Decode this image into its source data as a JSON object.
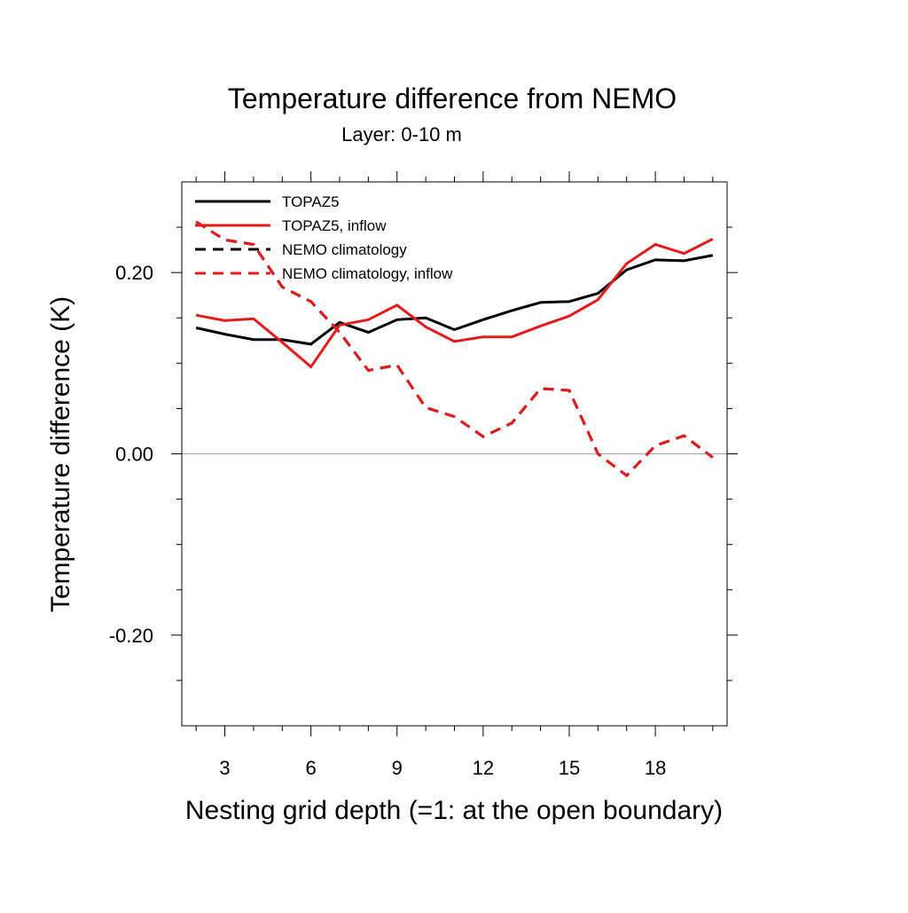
{
  "chart_data": {
    "type": "line",
    "title": "Temperature difference from NEMO",
    "subtitle": "Layer: 0-10 m",
    "xlabel": "Nesting grid depth (=1: at the open boundary)",
    "ylabel": "Temperature difference (K)",
    "x": [
      2,
      3,
      4,
      5,
      6,
      7,
      8,
      9,
      10,
      11,
      12,
      13,
      14,
      15,
      16,
      17,
      18,
      19,
      20
    ],
    "series": [
      {
        "name": "TOPAZ5",
        "color": "#000000",
        "linestyle": "solid",
        "values": [
          0.139,
          0.132,
          0.126,
          0.126,
          0.121,
          0.145,
          0.134,
          0.148,
          0.15,
          0.137,
          0.148,
          0.158,
          0.167,
          0.168,
          0.177,
          0.203,
          0.214,
          0.213,
          0.219
        ]
      },
      {
        "name": "TOPAZ5, inflow",
        "color": "#e41a1c",
        "linestyle": "solid",
        "values": [
          0.153,
          0.147,
          0.149,
          0.123,
          0.096,
          0.142,
          0.148,
          0.164,
          0.14,
          0.124,
          0.129,
          0.129,
          0.141,
          0.152,
          0.17,
          0.21,
          0.231,
          0.221,
          0.237
        ]
      },
      {
        "name": "NEMO climatology",
        "color": "#000000",
        "linestyle": "dashed",
        "values": [
          0.256,
          0.236,
          0.231,
          0.184,
          0.168,
          0.134,
          0.092,
          0.098,
          0.051,
          0.041,
          0.019,
          0.034,
          0.072,
          0.07,
          0.0,
          -0.024,
          0.009,
          0.02,
          -0.004
        ]
      },
      {
        "name": "NEMO climatology, inflow",
        "color": "#e41a1c",
        "linestyle": "dashed",
        "values": [
          0.256,
          0.236,
          0.231,
          0.184,
          0.168,
          0.134,
          0.092,
          0.098,
          0.051,
          0.041,
          0.019,
          0.034,
          0.072,
          0.07,
          0.0,
          -0.024,
          0.009,
          0.02,
          -0.004
        ]
      }
    ],
    "xlim": [
      1.5,
      20.5
    ],
    "ylim": [
      -0.3,
      0.3
    ],
    "xticks": [
      3,
      6,
      9,
      12,
      15,
      18
    ],
    "yticks": [
      {
        "value": -0.2,
        "label": "-0.20"
      },
      {
        "value": 0,
        "label": "0.00"
      },
      {
        "value": 0.2,
        "label": "0.20"
      }
    ],
    "xminorticks": [
      2,
      4,
      5,
      7,
      8,
      10,
      11,
      13,
      14,
      16,
      17,
      19,
      20
    ],
    "yminorticks": [
      -0.25,
      -0.15,
      -0.1,
      -0.05,
      0.05,
      0.1,
      0.15,
      0.25
    ],
    "zero_line": 0,
    "legend": "upper left"
  }
}
